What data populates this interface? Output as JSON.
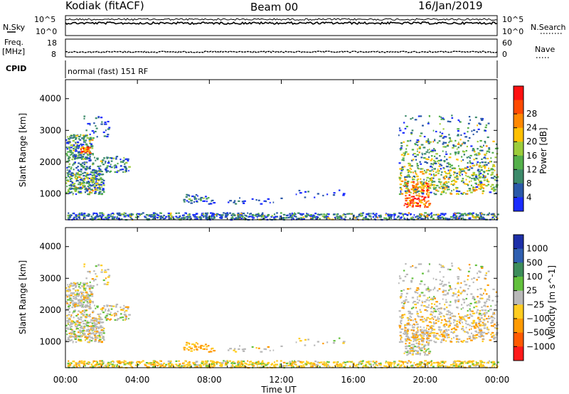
{
  "header": {
    "station": "Kodiak (fitACF)",
    "beam": "Beam 00",
    "date": "16/Jan/2019"
  },
  "summary_panels": {
    "nsky": {
      "label": "N.Sky",
      "ticks": [
        "10^5",
        "10^0"
      ]
    },
    "nsearch": {
      "label": "N.Search",
      "ticks": [
        "10^5",
        "10^0"
      ]
    },
    "freq": {
      "label_line1": "Freq.",
      "label_line2": "[MHz]",
      "ticks": [
        "18",
        "8"
      ]
    },
    "nave": {
      "label": "Nave",
      "ticks": [
        "60",
        "0"
      ]
    },
    "cpid": {
      "label": "CPID",
      "mode": "normal (fast) 151 RF"
    }
  },
  "chart_data": [
    {
      "type": "heatmap",
      "title": "",
      "xlabel": "Time UT",
      "ylabel": "Slant Range [km]",
      "x_ticks": [
        "00:00",
        "04:00",
        "08:00",
        "12:00",
        "16:00",
        "20:00",
        "00:00"
      ],
      "x_tick_hours": [
        0,
        4,
        8,
        12,
        16,
        20,
        24
      ],
      "xlim": [
        0,
        24
      ],
      "ylim": [
        180,
        4600
      ],
      "y_ticks": [
        1000,
        2000,
        3000,
        4000
      ],
      "colorbar": {
        "label": "Power [dB]",
        "ticks": [
          "4",
          "8",
          "12",
          "16",
          "20",
          "24",
          "28"
        ],
        "colors": [
          "#1a2cff",
          "#2a58a8",
          "#3c8a6a",
          "#54b04a",
          "#9ccc3a",
          "#ffc000",
          "#ff8800",
          "#ff4a00",
          "#ff1010"
        ]
      }
    },
    {
      "type": "heatmap",
      "title": "",
      "xlabel": "Time UT",
      "ylabel": "Slant Range [km]",
      "x_ticks": [
        "00:00",
        "04:00",
        "08:00",
        "12:00",
        "16:00",
        "20:00",
        "00:00"
      ],
      "x_tick_hours": [
        0,
        4,
        8,
        12,
        16,
        20,
        24
      ],
      "xlim": [
        0,
        24
      ],
      "ylim": [
        180,
        4600
      ],
      "y_ticks": [
        1000,
        2000,
        3000,
        4000
      ],
      "colorbar": {
        "label": "Velocity [m s^-1]",
        "ticks": [
          "1000",
          "500",
          "100",
          "25",
          "−25",
          "−100",
          "−500",
          "−1000"
        ],
        "colors": [
          "#1d2fa8",
          "#2f5fb0",
          "#3c8c5a",
          "#62c03c",
          "#b8b8b8",
          "#ffcc20",
          "#ff9a00",
          "#ff5a00",
          "#ff1a1a"
        ]
      }
    }
  ]
}
